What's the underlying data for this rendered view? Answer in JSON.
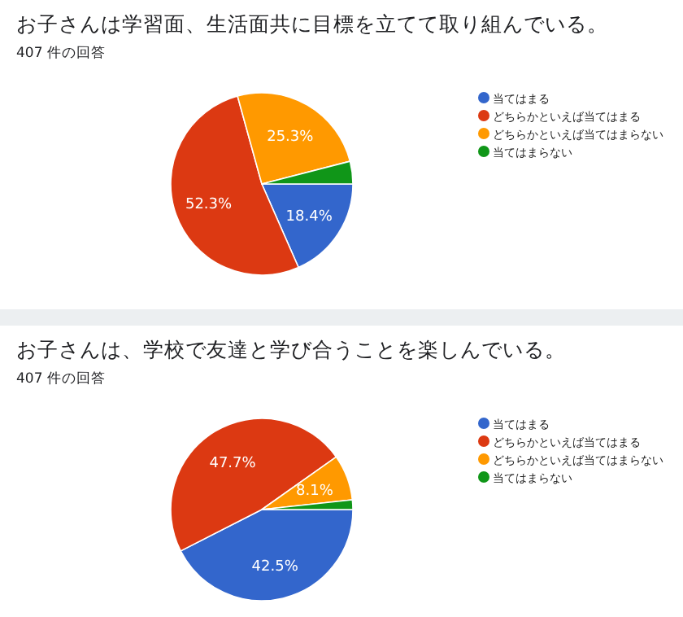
{
  "chart_data": [
    {
      "type": "pie",
      "title": "お子さんは学習面、生活面共に目標を立てて取り組んでいる。",
      "subtitle": "407 件の回答",
      "categories": [
        "当てはまる",
        "どちらかといえば当てはまる",
        "どちらかといえば当てはまらない",
        "当てはまらない"
      ],
      "values": [
        18.4,
        52.3,
        25.3,
        4.0
      ],
      "value_labels": [
        "18.4%",
        "52.3%",
        "25.3%",
        null
      ],
      "colors": [
        "#3366cc",
        "#dc3912",
        "#ff9900",
        "#109618"
      ],
      "legend": "right"
    },
    {
      "type": "pie",
      "title": "お子さんは、学校で友達と学び合うことを楽しんでいる。",
      "subtitle": "407 件の回答",
      "categories": [
        "当てはまる",
        "どちらかといえば当てはまる",
        "どちらかといえば当てはまらない",
        "当てはまらない"
      ],
      "values": [
        42.5,
        47.7,
        8.1,
        1.7
      ],
      "value_labels": [
        "42.5%",
        "47.7%",
        "8.1%",
        null
      ],
      "colors": [
        "#3366cc",
        "#dc3912",
        "#ff9900",
        "#109618"
      ],
      "legend": "right"
    }
  ]
}
